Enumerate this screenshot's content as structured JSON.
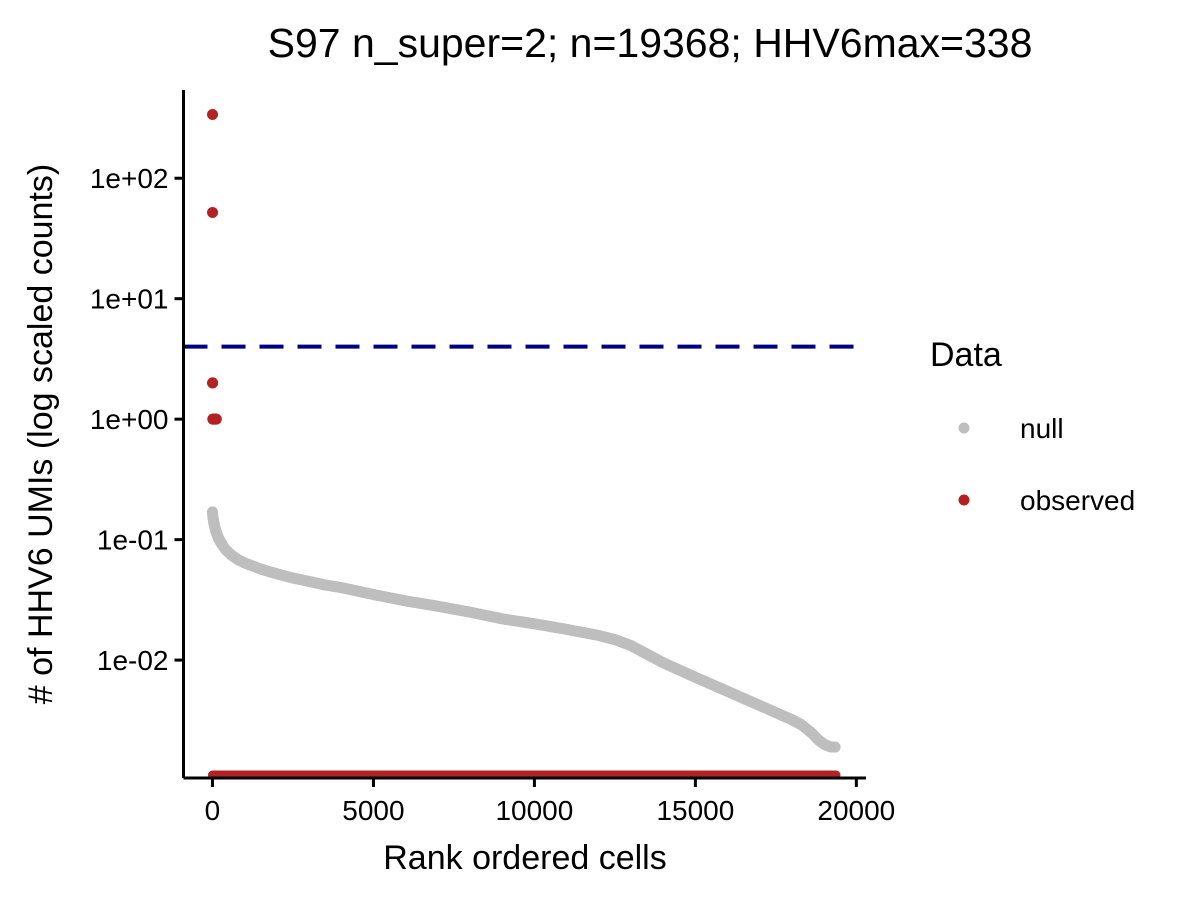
{
  "chart_data": {
    "type": "scatter",
    "title": "S97 n_super=2; n=19368; HHV6max=338",
    "xlabel": "Rank ordered cells",
    "ylabel": "# of HHV6 UMIs (log scaled counts)",
    "x_scale": "linear",
    "y_scale": "log10",
    "xlim": [
      -900,
      20300
    ],
    "ylim": [
      0.00105,
      540
    ],
    "x_ticks": [
      0,
      5000,
      10000,
      15000,
      20000
    ],
    "x_tick_labels": [
      "0",
      "5000",
      "10000",
      "15000",
      "20000"
    ],
    "y_ticks": [
      0.01,
      0.1,
      1,
      10,
      100
    ],
    "y_tick_labels": [
      "1e-02",
      "1e-01",
      "1e+00",
      "1e+01",
      "1e+02"
    ],
    "grid": false,
    "threshold_line": {
      "y": 4,
      "style": "dashed",
      "color": "#000080"
    },
    "legend": {
      "title": "Data",
      "position": "right",
      "entries": [
        {
          "label": "null",
          "color": "#bebebe"
        },
        {
          "label": "observed",
          "color": "#b22222"
        }
      ]
    },
    "series": [
      {
        "name": "null",
        "color": "#bebebe",
        "x": [
          1,
          5,
          10,
          20,
          40,
          60,
          100,
          150,
          200,
          300,
          400,
          600,
          800,
          1000,
          1500,
          2000,
          2500,
          3000,
          3500,
          4000,
          5000,
          6000,
          7000,
          8000,
          9000,
          10000,
          11000,
          12000,
          12500,
          13000,
          13500,
          14000,
          15000,
          16000,
          17000,
          18000,
          18300,
          18600,
          18800,
          19000,
          19100,
          19200,
          19300,
          19368
        ],
        "y": [
          0.17,
          0.165,
          0.158,
          0.15,
          0.14,
          0.131,
          0.119,
          0.109,
          0.101,
          0.091,
          0.083,
          0.074,
          0.068,
          0.064,
          0.057,
          0.052,
          0.048,
          0.045,
          0.042,
          0.04,
          0.035,
          0.031,
          0.028,
          0.025,
          0.022,
          0.02,
          0.018,
          0.016,
          0.0148,
          0.0132,
          0.0112,
          0.0095,
          0.0072,
          0.0055,
          0.0042,
          0.0032,
          0.0029,
          0.0025,
          0.0022,
          0.002,
          0.00195,
          0.0019,
          0.0019,
          0.0019
        ]
      },
      {
        "name": "observed",
        "color": "#b22222",
        "x": [
          1,
          2,
          3,
          5,
          10,
          20,
          40,
          60,
          80,
          100,
          120
        ],
        "y": [
          338,
          52,
          2,
          2,
          1,
          1,
          1,
          1,
          1,
          1,
          1
        ],
        "floor_band": {
          "x_from": 0,
          "x_to": 19368
        }
      }
    ]
  }
}
